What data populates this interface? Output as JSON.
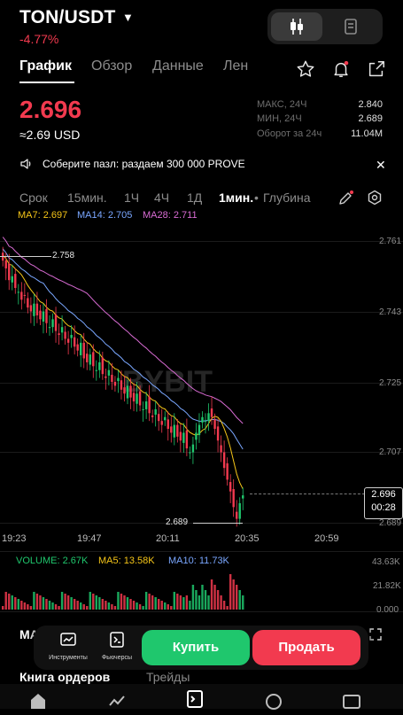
{
  "header": {
    "pair": "TON/USDT",
    "change": "-4.77%",
    "tabs": [
      "График",
      "Обзор",
      "Данные",
      "Лен"
    ]
  },
  "ticker": {
    "price": "2.696",
    "price_usd": "≈2.69 USD",
    "stats": [
      {
        "label": "МАКС, 24Ч",
        "value": "2.840"
      },
      {
        "label": "МИН, 24Ч",
        "value": "2.689"
      },
      {
        "label": "Оборот за 24ч",
        "value": "11.04M"
      }
    ]
  },
  "announcement": {
    "text": "Соберите пазл: раздаем 300 000 PROVE"
  },
  "timeframes": {
    "items": [
      "Срок",
      "15мин.",
      "1Ч",
      "4Ч",
      "1Д"
    ],
    "active": "1мин.",
    "depth": "Глубина"
  },
  "indicators": {
    "ma7": "MA7: 2.697",
    "ma14": "MA14: 2.705",
    "ma28": "MA28: 2.711"
  },
  "chart_data": {
    "type": "candlestick",
    "price_axis": [
      "2.761",
      "2.743",
      "2.725",
      "2.707",
      "2.689"
    ],
    "time_axis": [
      "19:23",
      "19:47",
      "20:11",
      "20:35",
      "20:59"
    ],
    "high_marker": "2.758",
    "low_marker": "2.689",
    "last_price": "2.696",
    "countdown": "00:28",
    "watermark": "BYBIT",
    "colors": {
      "up": "#1fc76d",
      "down": "#f23a4f",
      "ma7": "#f5c518",
      "ma14": "#7aa7ff",
      "ma28": "#d86bd3"
    },
    "close": [
      2.756,
      2.754,
      2.751,
      2.752,
      2.749,
      2.748,
      2.746,
      2.747,
      2.744,
      2.743,
      2.745,
      2.742,
      2.741,
      2.743,
      2.74,
      2.739,
      2.741,
      2.738,
      2.737,
      2.739,
      2.736,
      2.735,
      2.737,
      2.734,
      2.733,
      2.735,
      2.731,
      2.73,
      2.732,
      2.729,
      2.728,
      2.73,
      2.727,
      2.726,
      2.728,
      2.725,
      2.724,
      2.726,
      2.723,
      2.722,
      2.724,
      2.721,
      2.72,
      2.722,
      2.719,
      2.718,
      2.72,
      2.717,
      2.716,
      2.718,
      2.715,
      2.714,
      2.716,
      2.713,
      2.712,
      2.714,
      2.711,
      2.71,
      2.712,
      2.708,
      2.707,
      2.709,
      2.712,
      2.714,
      2.716,
      2.715,
      2.717,
      2.716,
      2.713,
      2.71,
      2.707,
      2.703,
      2.7,
      2.697,
      2.693,
      2.69,
      2.694,
      2.696
    ]
  },
  "volume": {
    "label": "VOLUME: 2.67K",
    "ma5": "MA5: 13.58K",
    "ma10": "MA10: 11.73K",
    "axis": [
      "43.63K",
      "21.82K",
      "0.000"
    ]
  },
  "actions": {
    "tools_label": "Инструменты",
    "futures_label": "Фьючерсы",
    "buy": "Купить",
    "sell": "Продать",
    "ma_fragment": "MA",
    "book_fragment": "Книга ордеров",
    "trades_fragment": "Трейды"
  }
}
